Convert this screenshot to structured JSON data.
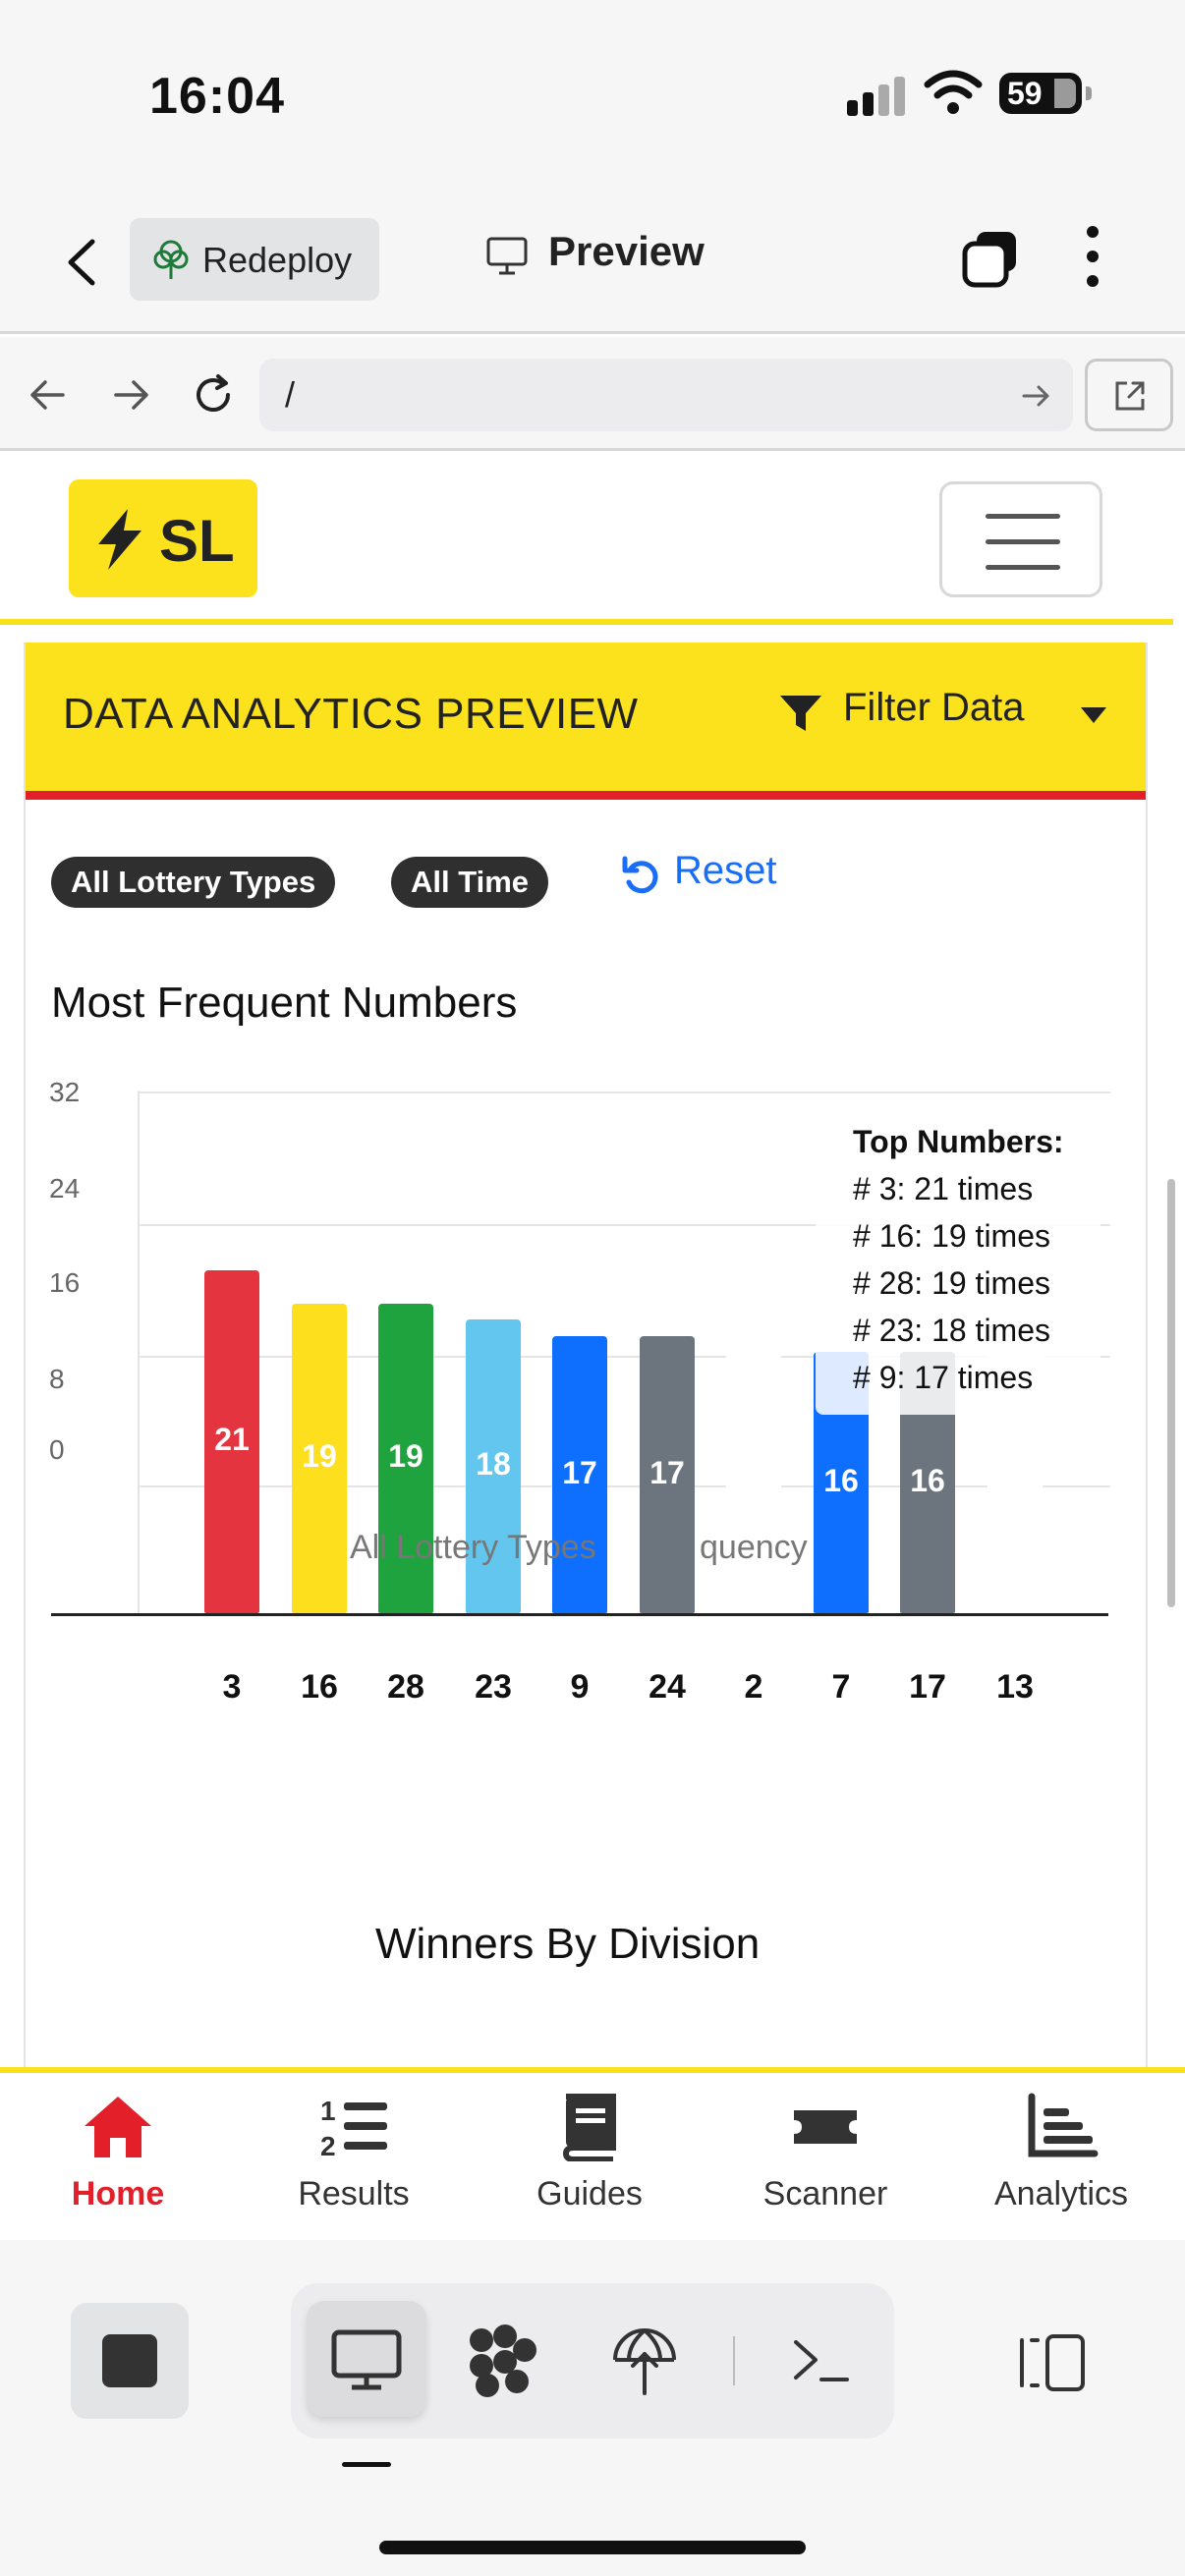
{
  "status_bar": {
    "time": "16:04",
    "battery": "59"
  },
  "app_header": {
    "redeploy_label": "Redeploy",
    "preview_label": "Preview"
  },
  "url_bar": {
    "url": "/"
  },
  "site": {
    "brand": "SL"
  },
  "card": {
    "title": "DATA ANALYTICS PREVIEW",
    "filter_label": "Filter Data",
    "pills": [
      "All Lottery Types",
      "All Time"
    ],
    "reset_label": "Reset",
    "chart_title": "Most Frequent Numbers",
    "second_title": "Winners By Division"
  },
  "chart_data": {
    "type": "bar",
    "title": "Most Frequent Numbers",
    "categories": [
      "3",
      "16",
      "28",
      "23",
      "9",
      "24",
      "2",
      "7",
      "17",
      "13"
    ],
    "values": [
      21,
      19,
      19,
      18,
      17,
      17,
      16,
      16,
      16,
      16
    ],
    "colors": [
      "#e3343f",
      "#fddf1d",
      "#1fa33e",
      "#62c6ef",
      "#0e6efd",
      "#6c757e",
      "#ffffff",
      "#0e6efd",
      "#6c757e",
      "#ffffff"
    ],
    "y_ticks": [
      "32",
      "24",
      "16",
      "8",
      "0"
    ],
    "legend_caption_left": "All Lottery Types",
    "legend_caption_right": "quency",
    "top_numbers": {
      "heading": "Top Numbers:",
      "lines": [
        "# 3: 21 times",
        "# 16: 19 times",
        "# 28: 19 times",
        "# 23: 18 times",
        "# 9: 17 times"
      ]
    }
  },
  "tabs": [
    {
      "label": "Home",
      "icon": "home-icon",
      "active": true
    },
    {
      "label": "Results",
      "icon": "ordered-list-icon"
    },
    {
      "label": "Guides",
      "icon": "book-icon"
    },
    {
      "label": "Scanner",
      "icon": "ticket-icon"
    },
    {
      "label": "Analytics",
      "icon": "chart-icon"
    }
  ],
  "colors": {
    "brand_yellow": "#fce21d",
    "brand_red": "#e3202a",
    "link_blue": "#1a6ef5"
  }
}
